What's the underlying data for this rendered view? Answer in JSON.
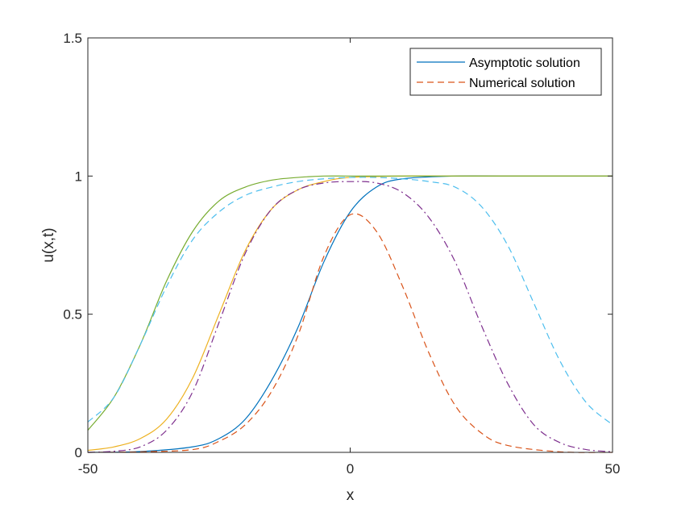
{
  "chart_data": {
    "type": "line",
    "title": "",
    "xlabel": "x",
    "ylabel": "u(x,t)",
    "xlim": [
      -50,
      50
    ],
    "ylim": [
      0,
      1.5
    ],
    "x_ticks": [
      "-50",
      "0",
      "50"
    ],
    "y_ticks": [
      "0",
      "0.5",
      "1",
      "1.5"
    ],
    "grid": false,
    "legend_position": "top-right",
    "legend": [
      {
        "label": "Asymptotic solution",
        "style": "solid",
        "color": "#0072BD"
      },
      {
        "label": "Numerical solution",
        "style": "dashed",
        "color": "#D95319"
      }
    ],
    "series": [
      {
        "style": "solid",
        "color": "#0072BD",
        "x": [
          -50,
          -40,
          -30,
          -25,
          -20,
          -15,
          -10,
          -5,
          0,
          5,
          10,
          20,
          30,
          40,
          50
        ],
        "y": [
          0.0,
          0.003,
          0.02,
          0.05,
          0.12,
          0.26,
          0.45,
          0.69,
          0.87,
          0.96,
          0.99,
          1.0,
          1.0,
          1.0,
          1.0
        ]
      },
      {
        "style": "dashed",
        "color": "#D95319",
        "x": [
          -50,
          -40,
          -30,
          -25,
          -20,
          -15,
          -10,
          -5,
          0,
          5,
          10,
          15,
          20,
          25,
          30,
          40,
          50
        ],
        "y": [
          0.0,
          0.002,
          0.01,
          0.04,
          0.1,
          0.22,
          0.42,
          0.71,
          0.86,
          0.8,
          0.6,
          0.36,
          0.17,
          0.07,
          0.025,
          0.002,
          0.0
        ]
      },
      {
        "style": "solid",
        "color": "#EDB120",
        "x": [
          -50,
          -45,
          -40,
          -35,
          -30,
          -25,
          -20,
          -15,
          -10,
          -5,
          0,
          10,
          20,
          50
        ],
        "y": [
          0.007,
          0.02,
          0.05,
          0.12,
          0.27,
          0.5,
          0.73,
          0.88,
          0.95,
          0.98,
          0.995,
          1.0,
          1.0,
          1.0
        ]
      },
      {
        "style": "dash-dot",
        "color": "#7E2F8E",
        "x": [
          -50,
          -45,
          -40,
          -35,
          -30,
          -25,
          -20,
          -15,
          -10,
          -5,
          0,
          5,
          10,
          15,
          20,
          25,
          30,
          35,
          40,
          45,
          50
        ],
        "y": [
          0.0,
          0.004,
          0.02,
          0.08,
          0.22,
          0.47,
          0.72,
          0.88,
          0.95,
          0.975,
          0.98,
          0.975,
          0.94,
          0.85,
          0.69,
          0.46,
          0.25,
          0.1,
          0.035,
          0.01,
          0.002
        ]
      },
      {
        "style": "solid",
        "color": "#77AC30",
        "x": [
          -50,
          -45,
          -40,
          -35,
          -30,
          -25,
          -20,
          -15,
          -10,
          -5,
          0,
          10,
          20,
          50
        ],
        "y": [
          0.08,
          0.2,
          0.39,
          0.62,
          0.8,
          0.91,
          0.96,
          0.985,
          0.995,
          1.0,
          1.0,
          1.0,
          1.0,
          1.0
        ]
      },
      {
        "style": "dashed",
        "color": "#4DBEEE",
        "x": [
          -50,
          -45,
          -40,
          -35,
          -30,
          -25,
          -20,
          -15,
          -10,
          -5,
          0,
          5,
          10,
          15,
          20,
          25,
          30,
          35,
          40,
          45,
          50
        ],
        "y": [
          0.11,
          0.2,
          0.39,
          0.6,
          0.77,
          0.87,
          0.93,
          0.96,
          0.98,
          0.99,
          0.995,
          0.995,
          0.99,
          0.98,
          0.96,
          0.89,
          0.75,
          0.54,
          0.33,
          0.18,
          0.1
        ]
      }
    ]
  }
}
